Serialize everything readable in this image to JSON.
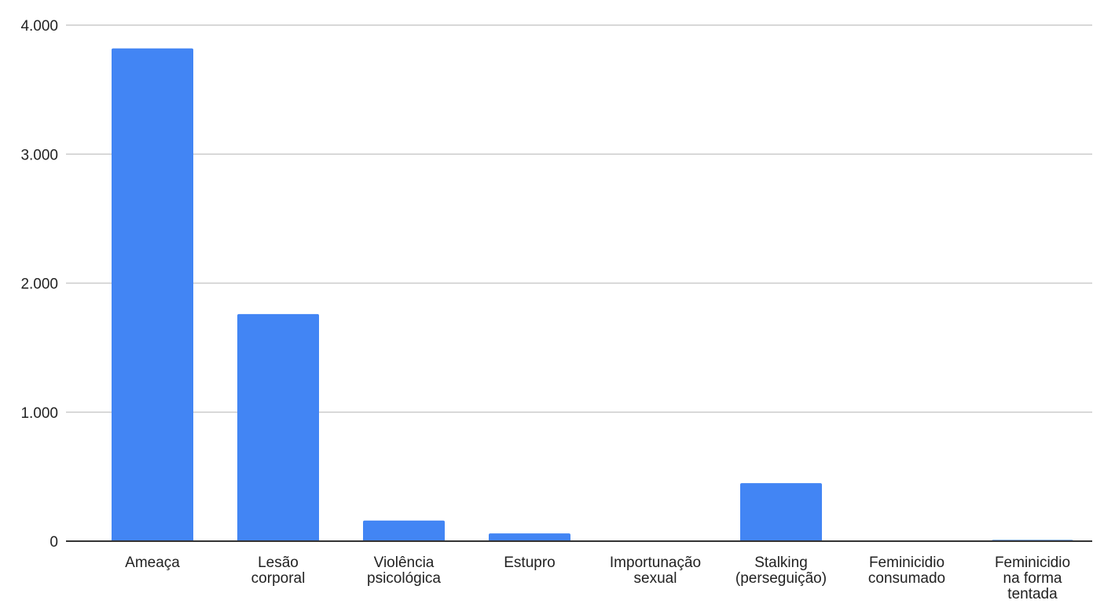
{
  "chart_data": {
    "type": "bar",
    "title": "",
    "xlabel": "",
    "ylabel": "",
    "ylim": [
      0,
      4000
    ],
    "grid": true,
    "legend": "none",
    "bar_color": "#4285f4",
    "gridline_color": "#cccccc",
    "axis_color": "#333333",
    "y_ticks": [
      {
        "value": 0,
        "label": "0"
      },
      {
        "value": 1000,
        "label": "1.000"
      },
      {
        "value": 2000,
        "label": "2.000"
      },
      {
        "value": 3000,
        "label": "3.000"
      },
      {
        "value": 4000,
        "label": "4.000"
      }
    ],
    "categories": [
      [
        "Ameaça"
      ],
      [
        "Lesão",
        "corporal"
      ],
      [
        "Violência",
        "psicológica"
      ],
      [
        "Estupro"
      ],
      [
        "Importunação",
        "sexual"
      ],
      [
        "Stalking",
        "(perseguição)"
      ],
      [
        "Feminicidio",
        "consumado"
      ],
      [
        "Feminicidio",
        "na forma",
        "tentada"
      ]
    ],
    "values": [
      3820,
      1760,
      160,
      60,
      0,
      450,
      0,
      10
    ]
  }
}
